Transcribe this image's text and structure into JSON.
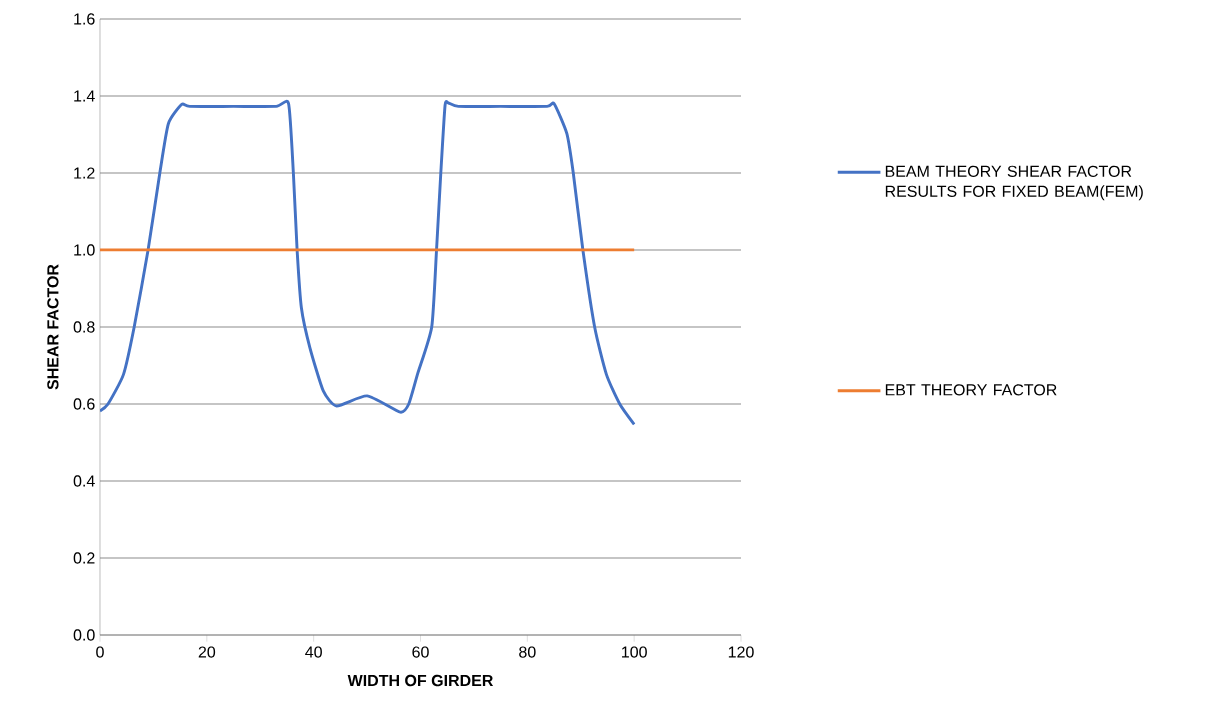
{
  "chart_data": {
    "type": "line",
    "xlabel": "WIDTH OF GIRDER",
    "ylabel": "SHEAR FACTOR",
    "xlim": [
      0,
      120
    ],
    "xticks": [
      0,
      20,
      40,
      60,
      80,
      100,
      120
    ],
    "ylim": [
      0,
      1.6
    ],
    "yticks": [
      {
        "value": 0,
        "label": "0.0"
      },
      {
        "value": 0.2,
        "label": "0.2"
      },
      {
        "value": 0.4,
        "label": "0.4"
      },
      {
        "value": 0.6,
        "label": "0.6"
      },
      {
        "value": 0.8,
        "label": "0.8"
      },
      {
        "value": 1.0,
        "label": "1.0"
      },
      {
        "value": 1.2,
        "label": "1.2"
      },
      {
        "value": 1.4,
        "label": "1.4"
      },
      {
        "value": 1.6,
        "label": "1.6"
      }
    ],
    "grid": "y",
    "legend": "right",
    "series": [
      {
        "name": "BEAM THEORY SHEAR FACTOR RESULTS FOR FIXED BEAM(FEM)",
        "color": "#4472c4",
        "x": [
          0,
          1.5,
          4.4,
          6.4,
          9.0,
          11.2,
          12.8,
          15.3,
          16.8,
          25,
          33,
          35.3,
          36.2,
          36.9,
          37.7,
          39.3,
          41.8,
          44.3,
          50,
          56.2,
          57.8,
          59.5,
          62.1,
          63.0,
          63.8,
          64.6,
          65.2,
          67.1,
          75,
          83.7,
          85,
          87.4,
          88.6,
          90.4,
          92.6,
          94.8,
          97.3,
          100
        ],
        "values": [
          0.582,
          0.6,
          0.677,
          0.8,
          1.0,
          1.2,
          1.328,
          1.378,
          1.373,
          1.373,
          1.373,
          1.38,
          1.2,
          1.0,
          0.85,
          0.746,
          0.634,
          0.595,
          0.621,
          0.579,
          0.6,
          0.68,
          0.8,
          1.0,
          1.2,
          1.376,
          1.382,
          1.373,
          1.373,
          1.373,
          1.38,
          1.302,
          1.2,
          1.0,
          0.8,
          0.677,
          0.6,
          0.547
        ]
      },
      {
        "name": "EBT THEORY FACTOR",
        "color": "#ed7d31",
        "x": [
          0,
          100
        ],
        "values": [
          1.0,
          1.0
        ]
      }
    ]
  }
}
